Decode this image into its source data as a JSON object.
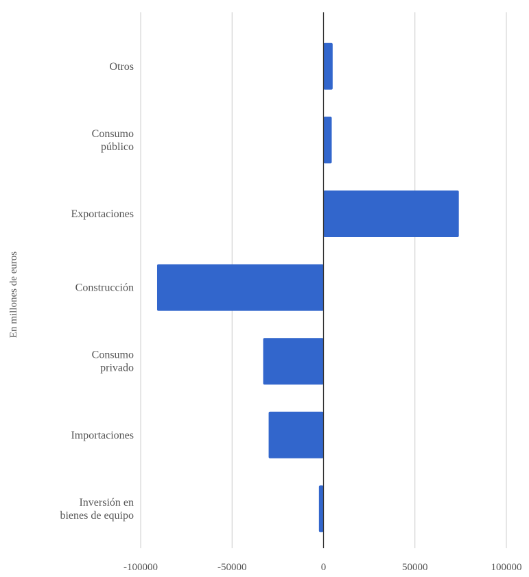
{
  "chart_data": {
    "type": "bar",
    "orientation": "horizontal",
    "categories": [
      [
        "Otros"
      ],
      [
        "Consumo",
        "público"
      ],
      [
        "Exportaciones"
      ],
      [
        "Construcción"
      ],
      [
        "Consumo",
        "privado"
      ],
      [
        "Importaciones"
      ],
      [
        "Inversión en",
        "bienes de equipo"
      ]
    ],
    "values": [
      5000,
      4500,
      74000,
      -91000,
      -33000,
      -30000,
      -2500
    ],
    "ylabel": "En millones de euros",
    "xlim": [
      -100000,
      100000
    ],
    "xticks": [
      -100000,
      -50000,
      0,
      50000,
      100000
    ],
    "grid": true,
    "legend": "none",
    "bar_color": "#3266cc",
    "grid_color": "#cccccc",
    "zero_line_color": "#333333"
  }
}
